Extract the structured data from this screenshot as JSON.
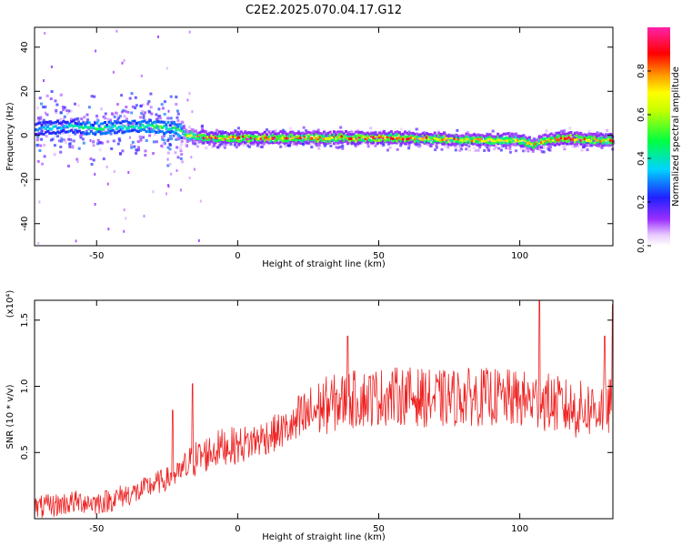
{
  "title": "C2E2.2025.070.04.17.G12",
  "colors": {
    "snr_line": "#ee2222",
    "frame": "#000000",
    "background": "#ffffff"
  },
  "chart_data": [
    {
      "type": "heatmap",
      "xlabel": "Height of straight line (km)",
      "ylabel": "Frequency (Hz)",
      "xlim": [
        -72,
        133
      ],
      "ylim": [
        -50,
        49
      ],
      "x_ticks": [
        -50,
        0,
        50,
        100
      ],
      "x_tick_labels": [
        "-50",
        "0",
        "50",
        "100"
      ],
      "y_ticks": [
        -40,
        -20,
        0,
        20,
        40
      ],
      "y_tick_labels": [
        "-40",
        "-20",
        "0",
        "20",
        "40"
      ],
      "grid": false,
      "colorbar": {
        "label": "Normalized spectral amplitude",
        "range": [
          0,
          1
        ],
        "ticks": [
          0,
          0.2,
          0.4,
          0.6,
          0.8
        ],
        "tick_labels": [
          "0.0",
          "0.2",
          "0.4",
          "0.6",
          "0.8"
        ],
        "colormap": "rainbow (white, violet, blue, cyan, green, yellow, orange, red, magenta)"
      },
      "ridge": {
        "x": [
          -72,
          -60,
          -50,
          -40,
          -30,
          -22,
          -18,
          -10,
          0,
          20,
          40,
          60,
          80,
          90,
          100,
          104,
          110,
          116,
          125,
          133
        ],
        "frequency": [
          3,
          4,
          3,
          4,
          4,
          3,
          0,
          -1,
          -1,
          -1,
          -1,
          -1,
          -2,
          -2,
          -2,
          -4,
          -2,
          -1,
          -2,
          -2
        ],
        "peak_amplitude": [
          0.35,
          0.4,
          0.45,
          0.45,
          0.5,
          0.45,
          0.7,
          0.9,
          0.9,
          0.85,
          0.85,
          0.9,
          0.85,
          0.8,
          0.8,
          0.75,
          0.85,
          0.9,
          0.85,
          0.8
        ]
      }
    },
    {
      "type": "line",
      "xlabel": "Height of straight line (km)",
      "ylabel": "SNR (10 * v/v)",
      "y_multiplier": "(x10⁴)",
      "xlim": [
        -72,
        133
      ],
      "ylim": [
        0,
        1.65
      ],
      "x_ticks": [
        -50,
        0,
        50,
        100
      ],
      "x_tick_labels": [
        "-50",
        "0",
        "50",
        "100"
      ],
      "y_ticks": [
        0.5,
        1.0,
        1.5
      ],
      "y_tick_labels": [
        "0.5",
        "1.0",
        "1.5"
      ],
      "grid": false,
      "series": [
        {
          "color": "#ee2222",
          "x": [
            -72,
            -65,
            -60,
            -55,
            -50,
            -45,
            -40,
            -35,
            -30,
            -25,
            -20,
            -15,
            -10,
            -5,
            0,
            5,
            10,
            15,
            20,
            25,
            30,
            40,
            50,
            60,
            70,
            80,
            90,
            100,
            110,
            120,
            133
          ],
          "values": [
            0.08,
            0.1,
            0.12,
            0.13,
            0.12,
            0.14,
            0.18,
            0.2,
            0.26,
            0.3,
            0.35,
            0.45,
            0.5,
            0.55,
            0.55,
            0.58,
            0.62,
            0.66,
            0.7,
            0.78,
            0.85,
            0.9,
            0.92,
            0.93,
            0.9,
            0.92,
            0.92,
            0.9,
            0.88,
            0.82,
            0.85
          ],
          "spikes": [
            {
              "x": -23,
              "y": 0.82
            },
            {
              "x": -16,
              "y": 1.02
            },
            {
              "x": 39,
              "y": 1.38
            },
            {
              "x": 107,
              "y": 1.66
            },
            {
              "x": 130,
              "y": 1.38
            },
            {
              "x": 133,
              "y": 1.62
            }
          ]
        }
      ]
    }
  ]
}
